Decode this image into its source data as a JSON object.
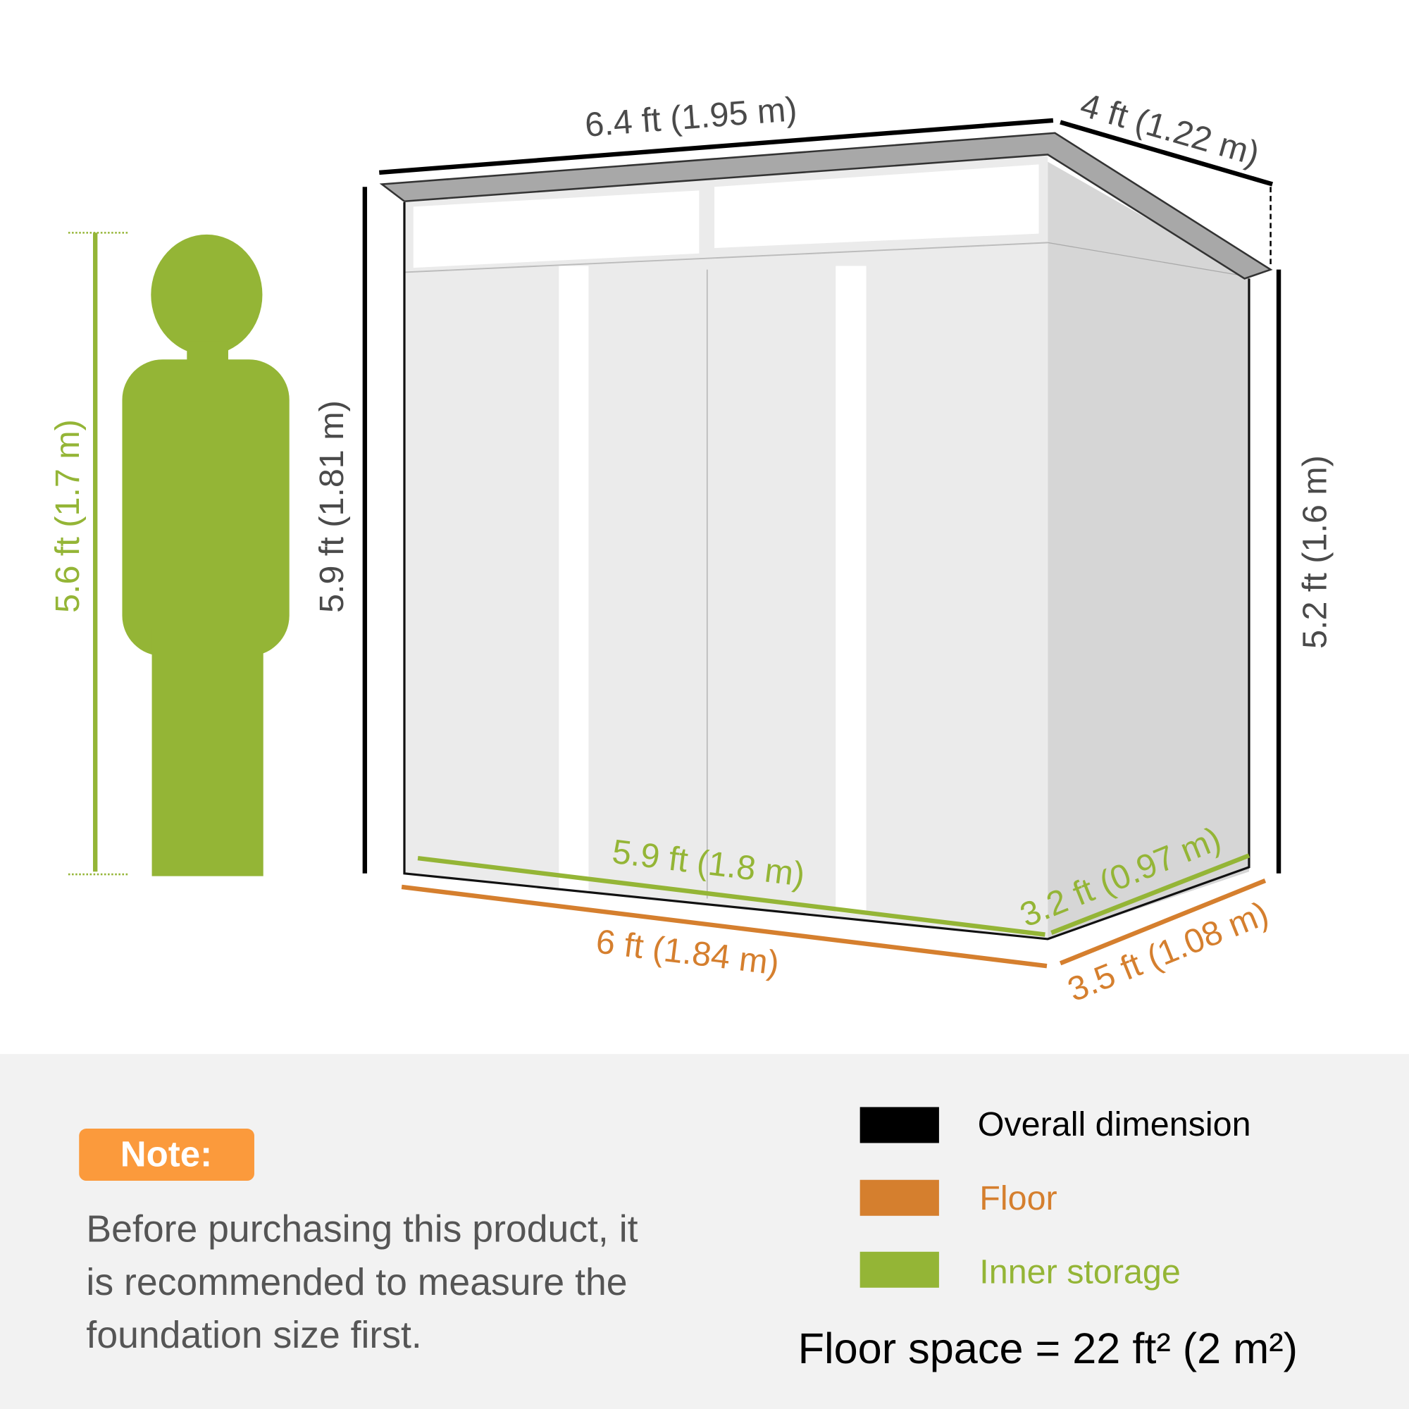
{
  "colors": {
    "overall": "#000000",
    "floor": "#d57f2e",
    "inner": "#94b536",
    "note_badge": "#fb9a3c",
    "panel_bg": "#f2f2f2",
    "text_gray": "#4a4a4a"
  },
  "dimensions": {
    "width_top": "6.4 ft (1.95 m)",
    "depth_top": "4 ft (1.22 m)",
    "height_front": "5.9 ft (1.81 m)",
    "height_back": "5.2 ft (1.6 m)",
    "person_height": "5.6 ft (1.7 m)",
    "inner_width": "5.9 ft (1.8 m)",
    "inner_depth": "3.2 ft (0.97 m)",
    "floor_width": "6 ft (1.84 m)",
    "floor_depth": "3.5 ft (1.08 m)"
  },
  "note": {
    "badge": "Note:",
    "lines": [
      "Before purchasing this product, it",
      "is recommended to measure the",
      "foundation size first."
    ]
  },
  "legend": [
    {
      "label": "Overall dimension",
      "color": "#000000"
    },
    {
      "label": "Floor",
      "color": "#d57f2e"
    },
    {
      "label": "Inner storage",
      "color": "#94b536"
    }
  ],
  "floor_space": "Floor space = 22 ft² (2 m²)"
}
